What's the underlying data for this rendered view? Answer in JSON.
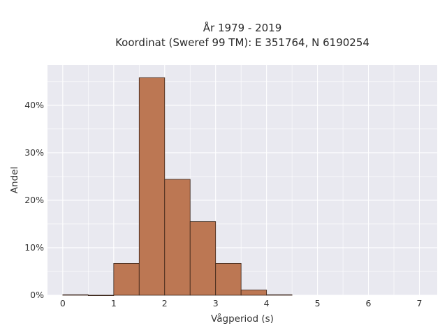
{
  "chart_data": {
    "type": "bar",
    "title_lines": [
      "År 1979 - 2019",
      "Koordinat (Sweref 99 TM): E 351764, N 6190254"
    ],
    "xlabel": "Vågperiod (s)",
    "ylabel": "Andel",
    "xlim": [
      -0.3,
      7.35
    ],
    "ylim": [
      0,
      48.5
    ],
    "x_ticks": [
      0,
      1,
      2,
      3,
      4,
      5,
      6,
      7
    ],
    "y_ticks": [
      0,
      10,
      20,
      30,
      40
    ],
    "y_tick_labels": [
      "0%",
      "10%",
      "20%",
      "30%",
      "40%"
    ],
    "bin_width": 0.5,
    "bins": [
      {
        "start": 0.0,
        "value": 0.1
      },
      {
        "start": 0.5,
        "value": 0.0
      },
      {
        "start": 1.0,
        "value": 6.7
      },
      {
        "start": 1.5,
        "value": 45.8
      },
      {
        "start": 2.0,
        "value": 24.4
      },
      {
        "start": 2.5,
        "value": 15.5
      },
      {
        "start": 3.0,
        "value": 6.7
      },
      {
        "start": 3.5,
        "value": 1.1
      },
      {
        "start": 4.0,
        "value": 0.1
      }
    ],
    "bar_color": "#bc7753",
    "bar_edge_color": "#3a2418",
    "background_color": "#e9e9f0",
    "grid": true,
    "grid_color": "#ffffff"
  }
}
